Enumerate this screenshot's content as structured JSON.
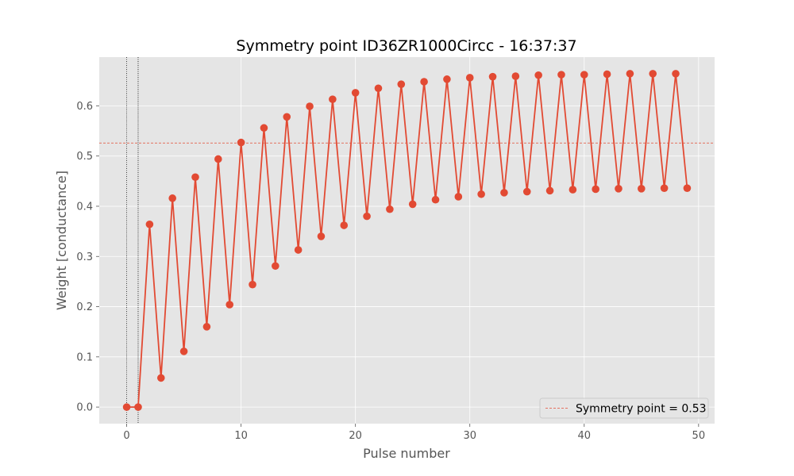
{
  "chart_data": {
    "type": "line",
    "title": "Symmetry point ID36ZR1000Circc - 16:37:37",
    "xlabel": "Pulse number",
    "ylabel": "Weight [conductance]",
    "xlim": [
      -2.4,
      51.4
    ],
    "ylim": [
      -0.033,
      0.697
    ],
    "xticks": [
      0,
      10,
      20,
      30,
      40,
      50
    ],
    "yticks": [
      0.0,
      0.1,
      0.2,
      0.3,
      0.4,
      0.5,
      0.6
    ],
    "xtick_labels": [
      "0",
      "10",
      "20",
      "30",
      "40",
      "50"
    ],
    "ytick_labels": [
      "0.0",
      "0.1",
      "0.2",
      "0.3",
      "0.4",
      "0.5",
      "0.6"
    ],
    "grid": true,
    "legend_position": "lower-right",
    "series": [
      {
        "color": "#e24a33",
        "marker": "circle",
        "x": [
          0,
          1,
          2,
          3,
          4,
          5,
          6,
          7,
          8,
          9,
          10,
          11,
          12,
          13,
          14,
          15,
          16,
          17,
          18,
          19,
          20,
          21,
          22,
          23,
          24,
          25,
          26,
          27,
          28,
          29,
          30,
          31,
          32,
          33,
          34,
          35,
          36,
          37,
          38,
          39,
          40,
          41,
          42,
          43,
          44,
          45,
          46,
          47,
          48,
          49
        ],
        "y": [
          0.0,
          0.0,
          0.364,
          0.058,
          0.416,
          0.111,
          0.458,
          0.16,
          0.494,
          0.204,
          0.527,
          0.244,
          0.556,
          0.281,
          0.578,
          0.313,
          0.599,
          0.34,
          0.613,
          0.362,
          0.626,
          0.38,
          0.635,
          0.394,
          0.643,
          0.404,
          0.648,
          0.413,
          0.653,
          0.419,
          0.656,
          0.424,
          0.658,
          0.427,
          0.659,
          0.429,
          0.661,
          0.431,
          0.662,
          0.433,
          0.662,
          0.434,
          0.663,
          0.435,
          0.664,
          0.435,
          0.664,
          0.436,
          0.664,
          0.436
        ]
      }
    ],
    "hlines": [
      {
        "y": 0.526,
        "color": "#e24a33",
        "style": "dashed",
        "label": "Symmetry point = 0.53"
      }
    ],
    "vlines": [
      {
        "x": 0,
        "color": "#000000",
        "style": "dotted"
      },
      {
        "x": 1,
        "color": "#000000",
        "style": "dotted"
      }
    ],
    "colors": {
      "background": "#e5e5e5",
      "grid": "#ffffff",
      "series": "#e24a33"
    }
  }
}
